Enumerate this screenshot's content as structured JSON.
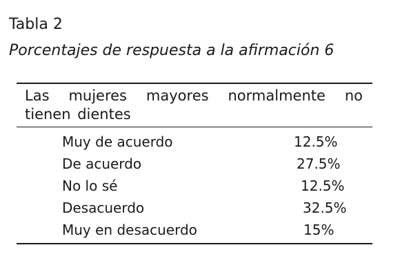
{
  "table_label": "Tabla 2",
  "caption": "Porcentajes de respuesta a la afirmación 6",
  "table": {
    "header": "Las mujeres mayores normalmente no tienen dientes",
    "rows": [
      {
        "label": "Muy de acuerdo",
        "value": "12.5%"
      },
      {
        "label": "De acuerdo",
        "value": "27.5%"
      },
      {
        "label": "No lo sé",
        "value": "12.5%"
      },
      {
        "label": "Desacuerdo",
        "value": "32.5%"
      },
      {
        "label": "Muy en desacuerdo",
        "value": "15%"
      }
    ]
  }
}
